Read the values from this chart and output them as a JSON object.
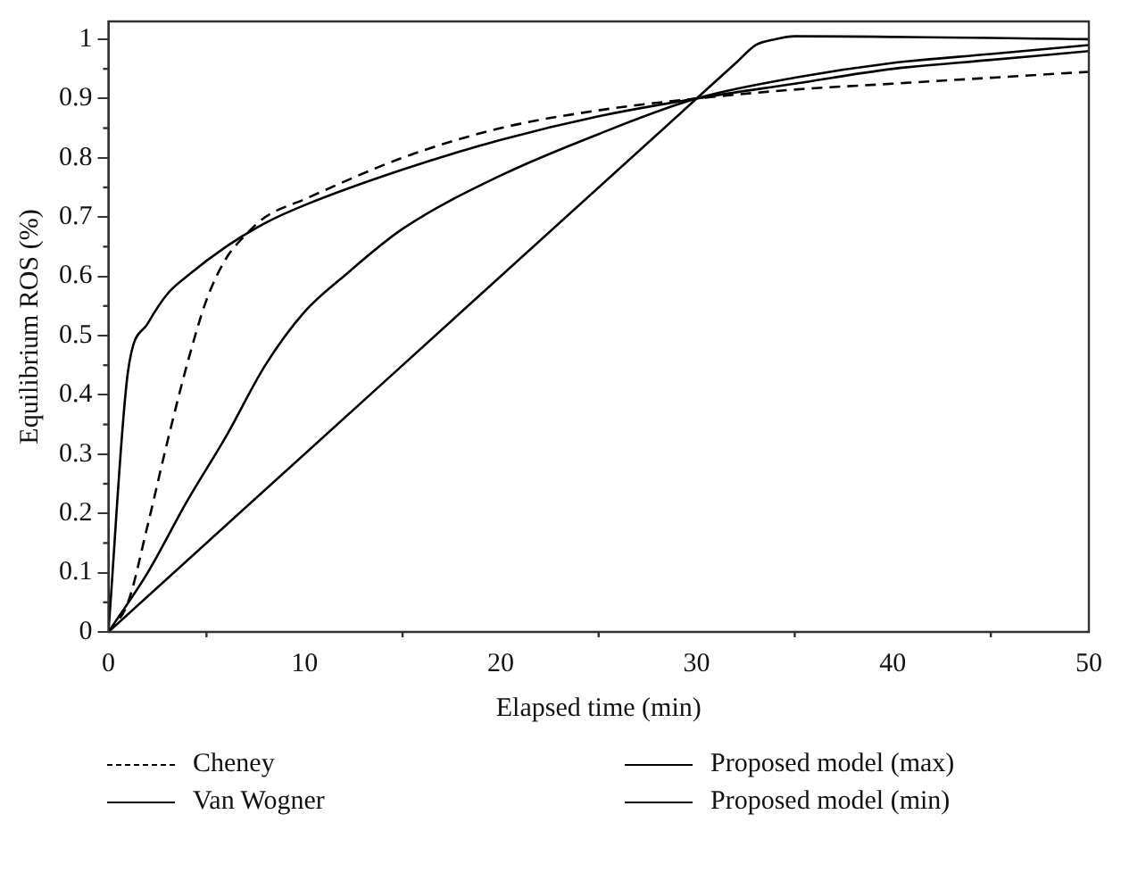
{
  "chart_data": {
    "type": "line",
    "xlabel": "Elapsed time (min)",
    "ylabel": "Equilibrium ROS (%)",
    "xlim": [
      0,
      50
    ],
    "xticks": [
      0,
      10,
      20,
      30,
      40,
      50
    ],
    "ylim": [
      0,
      1.03
    ],
    "yticks": [
      0,
      0.1,
      0.2,
      0.3,
      0.4,
      0.5,
      0.6,
      0.7,
      0.8,
      0.9,
      1
    ],
    "grid": false,
    "legend": "bottom",
    "marker": "none",
    "series": [
      {
        "name": "Cheney",
        "color": "#000000",
        "line_style": "dashed",
        "x": [
          0,
          1,
          2,
          3,
          4,
          5,
          6,
          7,
          8,
          10,
          15,
          20,
          25,
          30,
          35,
          40,
          45,
          50
        ],
        "values": [
          0,
          0.05,
          0.18,
          0.32,
          0.45,
          0.56,
          0.63,
          0.67,
          0.7,
          0.73,
          0.8,
          0.85,
          0.88,
          0.9,
          0.915,
          0.925,
          0.935,
          0.945
        ]
      },
      {
        "name": "Van Wogner",
        "color": "#000000",
        "line_style": "solid",
        "x": [
          0,
          1,
          2,
          3,
          4,
          6,
          8,
          10,
          15,
          20,
          25,
          30,
          35,
          40,
          45,
          50
        ],
        "values": [
          0,
          0.44,
          0.52,
          0.57,
          0.6,
          0.65,
          0.69,
          0.72,
          0.78,
          0.83,
          0.87,
          0.9,
          0.925,
          0.95,
          0.965,
          0.98
        ]
      },
      {
        "name": "Proposed model (max)",
        "color": "#000000",
        "line_style": "solid",
        "x": [
          0,
          30,
          32,
          33,
          34,
          35,
          50
        ],
        "values": [
          0,
          0.9,
          0.96,
          0.99,
          1.0,
          1.005,
          1.0
        ]
      },
      {
        "name": "Proposed model (min)",
        "color": "#000000",
        "line_style": "solid",
        "x": [
          0,
          2,
          4,
          6,
          8,
          10,
          12,
          15,
          20,
          25,
          30,
          35,
          40,
          45,
          50
        ],
        "values": [
          0,
          0.1,
          0.22,
          0.33,
          0.45,
          0.54,
          0.6,
          0.68,
          0.77,
          0.84,
          0.9,
          0.935,
          0.96,
          0.975,
          0.99
        ]
      }
    ]
  }
}
